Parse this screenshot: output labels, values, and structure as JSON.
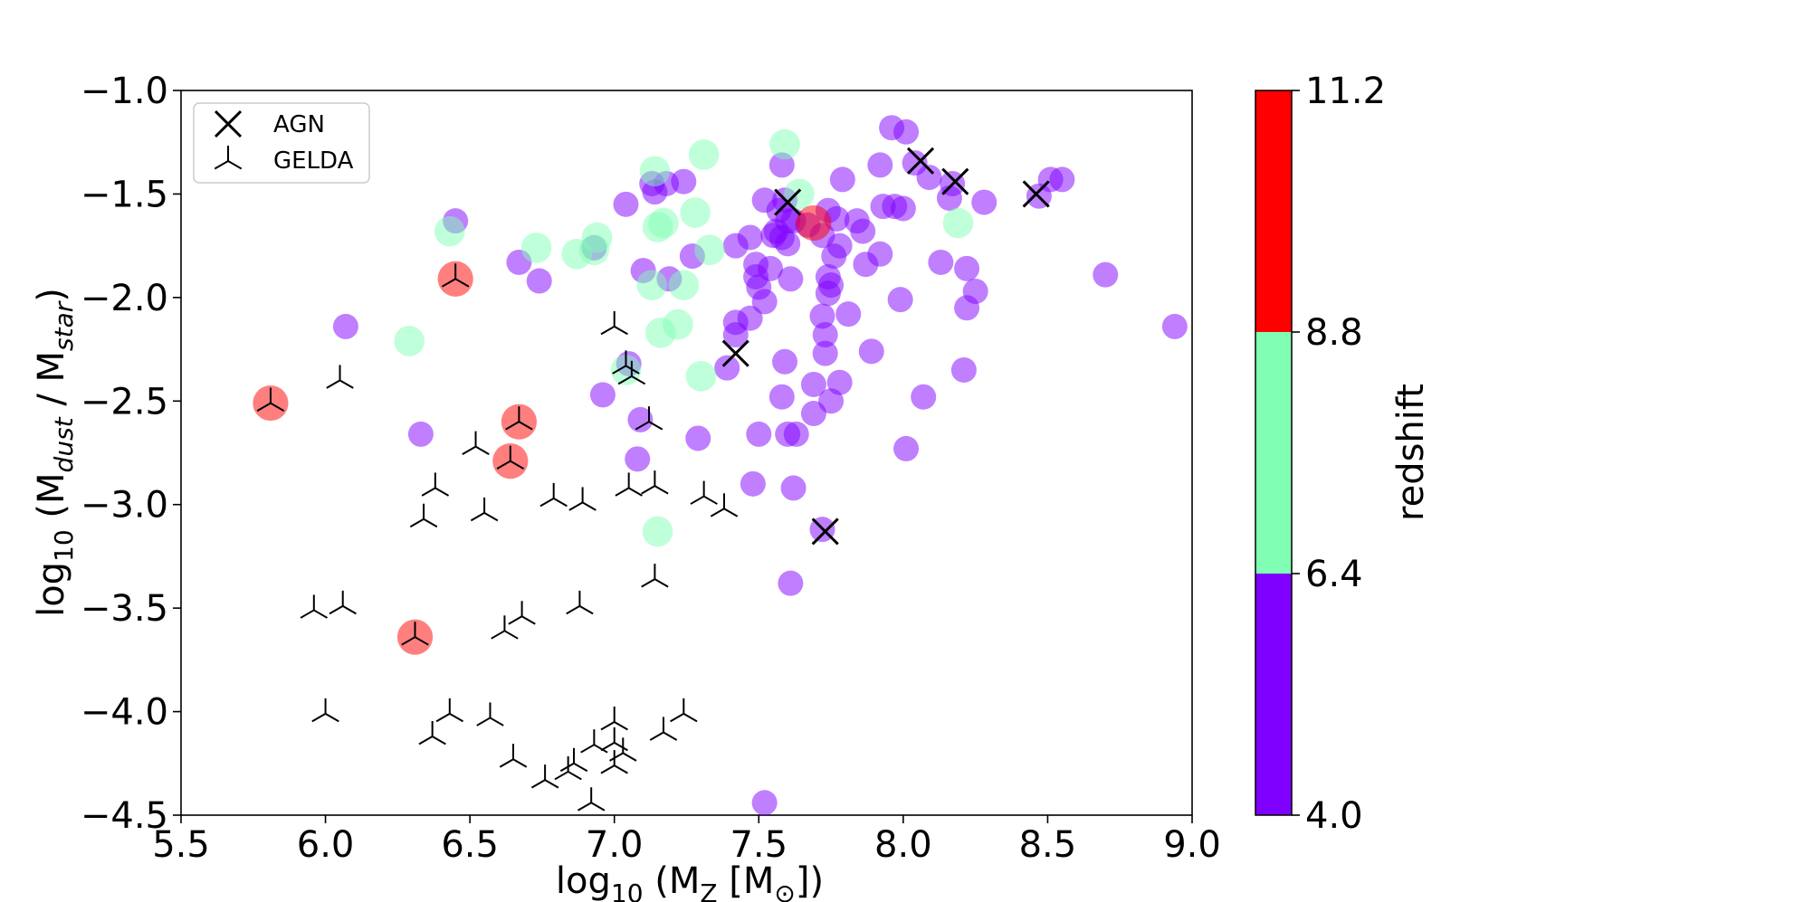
{
  "chart_data": {
    "type": "scatter",
    "xlabel": "log10 (MZ [M⊙])",
    "ylabel": "log10 (Mdust / Mstar)",
    "xlim": [
      5.5,
      9.0
    ],
    "ylim": [
      -4.5,
      -1.0
    ],
    "xticks": [
      "5.5",
      "6.0",
      "6.5",
      "7.0",
      "7.5",
      "8.0",
      "8.5",
      "9.0"
    ],
    "yticks": [
      "−4.5",
      "−4.0",
      "−3.5",
      "−3.0",
      "−2.5",
      "−2.0",
      "−1.5",
      "−1.0"
    ],
    "grid": false,
    "legend": {
      "position": "top-left",
      "entries": [
        {
          "label": "AGN",
          "marker": "x"
        },
        {
          "label": "GELDA",
          "marker": "tri-down"
        }
      ]
    },
    "colorbar": {
      "label": "redshift",
      "ticks": [
        "4.0",
        "6.4",
        "8.8",
        "11.2"
      ],
      "bins": [
        {
          "from": 4.0,
          "to": 6.4,
          "color": "#8000ff"
        },
        {
          "from": 6.4,
          "to": 8.8,
          "color": "#80ffb4"
        },
        {
          "from": 8.8,
          "to": 11.2,
          "color": "#ff0000"
        }
      ]
    },
    "series": [
      {
        "name": "z 4.0–6.4",
        "color": "#8000ff",
        "opacity": 0.5,
        "size": 1,
        "points": [
          [
            7.96,
            -1.18
          ],
          [
            8.01,
            -1.2
          ],
          [
            7.92,
            -1.36
          ],
          [
            8.04,
            -1.35
          ],
          [
            8.09,
            -1.42
          ],
          [
            7.58,
            -1.36
          ],
          [
            7.97,
            -1.56
          ],
          [
            7.79,
            -1.43
          ],
          [
            7.93,
            -1.56
          ],
          [
            8.0,
            -1.57
          ],
          [
            8.17,
            -1.45
          ],
          [
            8.16,
            -1.52
          ],
          [
            8.28,
            -1.54
          ],
          [
            8.51,
            -1.43
          ],
          [
            8.55,
            -1.43
          ],
          [
            8.47,
            -1.51
          ],
          [
            7.59,
            -1.53
          ],
          [
            7.52,
            -1.53
          ],
          [
            7.57,
            -1.58
          ],
          [
            7.6,
            -1.63
          ],
          [
            7.62,
            -1.63
          ],
          [
            7.67,
            -1.65
          ],
          [
            7.74,
            -1.58
          ],
          [
            7.77,
            -1.62
          ],
          [
            7.84,
            -1.63
          ],
          [
            7.86,
            -1.68
          ],
          [
            7.72,
            -1.7
          ],
          [
            7.58,
            -1.71
          ],
          [
            7.55,
            -1.7
          ],
          [
            7.56,
            -1.68
          ],
          [
            7.6,
            -1.74
          ],
          [
            7.47,
            -1.71
          ],
          [
            7.42,
            -1.75
          ],
          [
            7.76,
            -1.8
          ],
          [
            7.78,
            -1.75
          ],
          [
            7.92,
            -1.79
          ],
          [
            7.87,
            -1.84
          ],
          [
            8.13,
            -1.83
          ],
          [
            8.22,
            -1.86
          ],
          [
            8.7,
            -1.89
          ],
          [
            7.54,
            -1.86
          ],
          [
            7.49,
            -1.84
          ],
          [
            7.49,
            -1.9
          ],
          [
            7.5,
            -1.95
          ],
          [
            7.61,
            -1.91
          ],
          [
            7.74,
            -1.9
          ],
          [
            7.75,
            -1.94
          ],
          [
            7.74,
            -1.98
          ],
          [
            7.72,
            -2.09
          ],
          [
            7.81,
            -2.08
          ],
          [
            7.99,
            -2.01
          ],
          [
            8.25,
            -1.97
          ],
          [
            8.22,
            -2.05
          ],
          [
            7.52,
            -2.02
          ],
          [
            7.47,
            -2.1
          ],
          [
            7.42,
            -2.12
          ],
          [
            7.42,
            -2.18
          ],
          [
            7.73,
            -2.18
          ],
          [
            7.73,
            -2.27
          ],
          [
            7.89,
            -2.26
          ],
          [
            8.94,
            -2.14
          ],
          [
            8.21,
            -2.35
          ],
          [
            7.59,
            -2.31
          ],
          [
            7.39,
            -2.34
          ],
          [
            7.69,
            -2.42
          ],
          [
            7.78,
            -2.41
          ],
          [
            7.75,
            -2.5
          ],
          [
            7.69,
            -2.56
          ],
          [
            7.58,
            -2.48
          ],
          [
            8.07,
            -2.48
          ],
          [
            7.5,
            -2.66
          ],
          [
            7.6,
            -2.66
          ],
          [
            7.63,
            -2.66
          ],
          [
            7.29,
            -2.68
          ],
          [
            8.01,
            -2.73
          ],
          [
            7.08,
            -2.78
          ],
          [
            7.48,
            -2.9
          ],
          [
            7.62,
            -2.92
          ],
          [
            7.61,
            -3.38
          ],
          [
            7.52,
            -4.44
          ],
          [
            7.13,
            -1.45
          ],
          [
            7.18,
            -1.45
          ],
          [
            7.24,
            -1.44
          ],
          [
            7.14,
            -1.49
          ],
          [
            7.04,
            -1.55
          ],
          [
            7.27,
            -1.8
          ],
          [
            7.1,
            -1.87
          ],
          [
            7.19,
            -1.91
          ],
          [
            6.93,
            -1.76
          ],
          [
            6.45,
            -1.63
          ],
          [
            6.67,
            -1.83
          ],
          [
            6.74,
            -1.92
          ],
          [
            6.07,
            -2.14
          ],
          [
            7.05,
            -2.32
          ],
          [
            6.96,
            -2.47
          ],
          [
            7.09,
            -2.59
          ],
          [
            6.33,
            -2.66
          ],
          [
            7.72,
            -3.12
          ]
        ]
      },
      {
        "name": "z 6.4–8.8",
        "color": "#80ffb4",
        "opacity": 0.5,
        "size": 1.2,
        "points": [
          [
            7.59,
            -1.26
          ],
          [
            7.31,
            -1.31
          ],
          [
            7.14,
            -1.39
          ],
          [
            7.64,
            -1.5
          ],
          [
            7.28,
            -1.59
          ],
          [
            7.15,
            -1.66
          ],
          [
            7.17,
            -1.64
          ],
          [
            6.94,
            -1.71
          ],
          [
            6.93,
            -1.77
          ],
          [
            6.73,
            -1.76
          ],
          [
            6.87,
            -1.79
          ],
          [
            6.43,
            -1.68
          ],
          [
            7.33,
            -1.77
          ],
          [
            7.13,
            -1.94
          ],
          [
            7.24,
            -1.94
          ],
          [
            7.22,
            -2.13
          ],
          [
            7.16,
            -2.17
          ],
          [
            7.3,
            -2.38
          ],
          [
            6.29,
            -2.21
          ],
          [
            7.04,
            -2.35
          ],
          [
            8.19,
            -1.64
          ],
          [
            7.15,
            -3.13
          ]
        ]
      },
      {
        "name": "z 8.8–11.2",
        "color": "#ff0000",
        "opacity": 0.5,
        "size": 1.4,
        "points": [
          [
            7.69,
            -1.64
          ],
          [
            6.67,
            -2.6
          ],
          [
            6.64,
            -2.79
          ],
          [
            6.31,
            -3.64
          ],
          [
            5.81,
            -2.51
          ],
          [
            6.45,
            -1.91
          ]
        ]
      },
      {
        "name": "GELDA",
        "marker": "tri-down",
        "color": "#000000",
        "points": [
          [
            6.45,
            -1.91
          ],
          [
            5.81,
            -2.51
          ],
          [
            6.05,
            -2.4
          ],
          [
            6.52,
            -2.72
          ],
          [
            6.67,
            -2.6
          ],
          [
            6.64,
            -2.79
          ],
          [
            6.38,
            -2.92
          ],
          [
            6.34,
            -3.07
          ],
          [
            6.55,
            -3.04
          ],
          [
            6.79,
            -2.97
          ],
          [
            6.89,
            -2.99
          ],
          [
            7.05,
            -2.92
          ],
          [
            7.14,
            -2.91
          ],
          [
            7.31,
            -2.96
          ],
          [
            7.38,
            -3.02
          ],
          [
            7.0,
            -2.14
          ],
          [
            7.04,
            -2.33
          ],
          [
            7.06,
            -2.38
          ],
          [
            7.12,
            -2.6
          ],
          [
            7.14,
            -3.36
          ],
          [
            6.31,
            -3.64
          ],
          [
            5.96,
            -3.51
          ],
          [
            6.06,
            -3.49
          ],
          [
            6.62,
            -3.61
          ],
          [
            6.68,
            -3.54
          ],
          [
            6.88,
            -3.49
          ],
          [
            6.0,
            -4.01
          ],
          [
            6.43,
            -4.01
          ],
          [
            6.57,
            -4.03
          ],
          [
            6.37,
            -4.12
          ],
          [
            6.65,
            -4.23
          ],
          [
            6.76,
            -4.33
          ],
          [
            6.84,
            -4.29
          ],
          [
            6.86,
            -4.25
          ],
          [
            6.93,
            -4.16
          ],
          [
            7.0,
            -4.05
          ],
          [
            7.0,
            -4.15
          ],
          [
            7.03,
            -4.2
          ],
          [
            7.0,
            -4.26
          ],
          [
            7.17,
            -4.1
          ],
          [
            7.24,
            -4.01
          ],
          [
            6.92,
            -4.44
          ]
        ]
      },
      {
        "name": "AGN",
        "marker": "x",
        "color": "#000000",
        "points": [
          [
            7.6,
            -1.54
          ],
          [
            8.06,
            -1.34
          ],
          [
            8.18,
            -1.44
          ],
          [
            8.46,
            -1.5
          ],
          [
            7.42,
            -2.27
          ],
          [
            7.73,
            -3.13
          ]
        ]
      }
    ]
  }
}
